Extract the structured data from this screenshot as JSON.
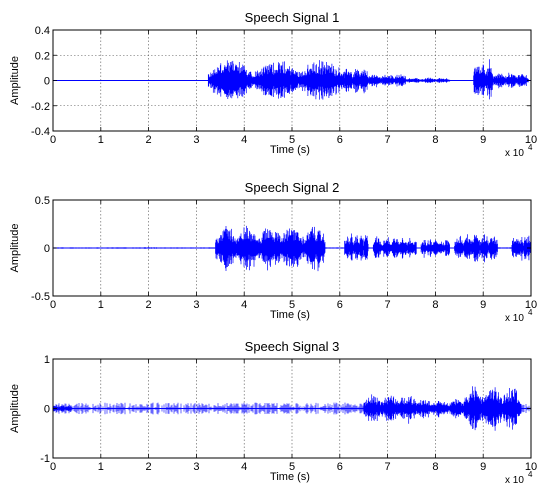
{
  "chart_data": [
    {
      "type": "line",
      "title": "Speech Signal 1",
      "xlabel": "Time (s)",
      "ylabel": "Amplitude",
      "xlim": [
        0,
        10
      ],
      "ylim": [
        -0.4,
        0.4
      ],
      "xticks": [
        "0",
        "1",
        "2",
        "3",
        "4",
        "5",
        "6",
        "7",
        "8",
        "9",
        "10"
      ],
      "yticks": [
        "-0.4",
        "-0.2",
        "0",
        "0.2",
        "0.4"
      ],
      "x_multiplier": "x 10",
      "x_multiplier_exp": "4",
      "grid": true,
      "series": [
        {
          "color": "#0000ff",
          "segments": [
            {
              "x0": 3.25,
              "x1": 6.1,
              "env": 0.17
            },
            {
              "x0": 6.1,
              "x1": 6.6,
              "env": 0.12
            },
            {
              "x0": 6.6,
              "x1": 7.4,
              "env": 0.06
            },
            {
              "x0": 7.4,
              "x1": 8.3,
              "env": 0.025
            },
            {
              "x0": 8.8,
              "x1": 9.2,
              "env": 0.18
            },
            {
              "x0": 9.2,
              "x1": 9.95,
              "env": 0.07
            }
          ],
          "baseline": 0.0015
        }
      ]
    },
    {
      "type": "line",
      "title": "Speech Signal 2",
      "xlabel": "Time (s)",
      "ylabel": "Amplitude",
      "xlim": [
        0,
        10
      ],
      "ylim": [
        -0.5,
        0.5
      ],
      "xticks": [
        "0",
        "1",
        "2",
        "3",
        "4",
        "5",
        "6",
        "7",
        "8",
        "9",
        "10"
      ],
      "yticks": [
        "-0.5",
        "0",
        "0.5"
      ],
      "x_multiplier": "x 10",
      "x_multiplier_exp": "4",
      "grid": true,
      "series": [
        {
          "color": "#0000ff",
          "segments": [
            {
              "x0": 1.9,
              "x1": 2.2,
              "env": 0.01
            },
            {
              "x0": 3.4,
              "x1": 5.7,
              "env": 0.26
            },
            {
              "x0": 6.1,
              "x1": 6.6,
              "env": 0.17
            },
            {
              "x0": 6.7,
              "x1": 7.6,
              "env": 0.14
            },
            {
              "x0": 7.7,
              "x1": 8.3,
              "env": 0.11
            },
            {
              "x0": 8.4,
              "x1": 9.3,
              "env": 0.17
            },
            {
              "x0": 9.6,
              "x1": 10.0,
              "env": 0.16
            }
          ],
          "baseline": 0.004
        }
      ]
    },
    {
      "type": "line",
      "title": "Speech Signal 3",
      "xlabel": "Time (s)",
      "ylabel": "Amplitude",
      "xlim": [
        0,
        10
      ],
      "ylim": [
        -1,
        1
      ],
      "xticks": [
        "0",
        "1",
        "2",
        "3",
        "4",
        "5",
        "6",
        "7",
        "8",
        "9",
        "10"
      ],
      "yticks": [
        "-1",
        "0",
        "1"
      ],
      "x_multiplier": "x 10",
      "x_multiplier_exp": "4",
      "grid": true,
      "series": [
        {
          "color": "#0000ff",
          "segments": [
            {
              "x0": 0.0,
              "x1": 0.4,
              "env": 0.09
            },
            {
              "x0": 6.5,
              "x1": 7.6,
              "env": 0.32
            },
            {
              "x0": 7.6,
              "x1": 8.6,
              "env": 0.22
            },
            {
              "x0": 8.6,
              "x1": 9.8,
              "env": 0.5
            }
          ],
          "baseline": 0.03
        }
      ]
    }
  ]
}
